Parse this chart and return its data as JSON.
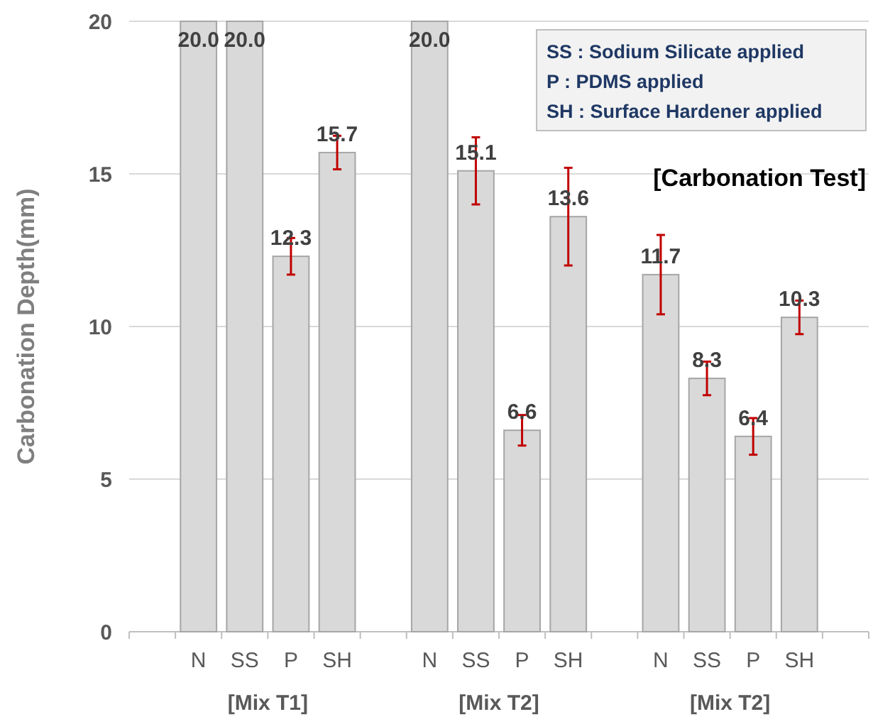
{
  "chart_data": {
    "type": "bar",
    "title": "[Carbonation Test]",
    "ylabel": "Carbonation Depth(mm)",
    "categories": [
      null,
      "N",
      "SS",
      "P",
      "SH",
      null,
      "N",
      "SS",
      "P",
      "SH",
      null,
      "N",
      "SS",
      "P",
      "SH",
      null
    ],
    "values": [
      null,
      20.0,
      20.0,
      12.3,
      15.7,
      null,
      20.0,
      15.1,
      6.6,
      13.6,
      null,
      11.7,
      8.3,
      6.4,
      10.3,
      null
    ],
    "errors": [
      null,
      null,
      null,
      0.6,
      0.55,
      null,
      null,
      1.1,
      0.5,
      1.6,
      null,
      1.3,
      0.55,
      0.6,
      0.55,
      null
    ],
    "value_labels": [
      null,
      "20.0",
      "20.0",
      "12.3",
      "15.7",
      null,
      "20.0",
      "15.1",
      "6.6",
      "13.6",
      null,
      "11.7",
      "8.3",
      "6.4",
      "10.3",
      null
    ],
    "color": "#d9d9d9",
    "ylim": [
      0,
      20
    ],
    "yticks": [
      0,
      5,
      10,
      15,
      20
    ],
    "grid": "y",
    "annotations": [
      "SS : Sodium Silicate applied",
      "P : PDMS applied",
      "SH : Surface Hardener applied",
      "[Mix T1]",
      "[Mix T2]",
      "[Mix T2]"
    ]
  }
}
